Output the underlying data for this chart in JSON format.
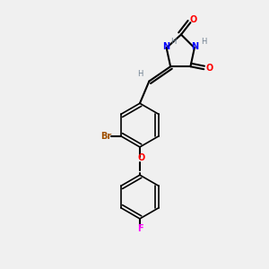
{
  "bg_color": "#f0f0f0",
  "atom_colors": {
    "C": "#000000",
    "H": "#708090",
    "N": "#0000ff",
    "O": "#ff0000",
    "Br": "#a05000",
    "F": "#ff00ff"
  },
  "bond_color": "#000000",
  "title": "",
  "figsize": [
    3.0,
    3.0
  ],
  "dpi": 100
}
